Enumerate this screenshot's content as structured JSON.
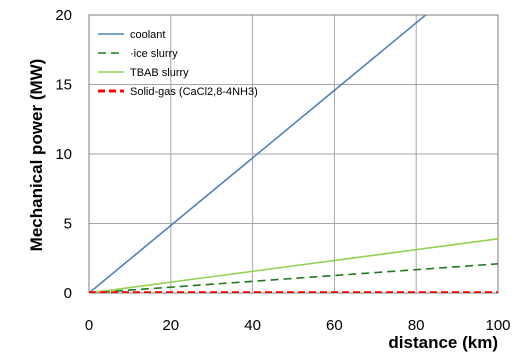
{
  "chart_data": {
    "type": "line",
    "xlabel": "distance (km)",
    "ylabel": "Mechanical power (MW)",
    "xlim": [
      0,
      100
    ],
    "ylim": [
      0,
      20
    ],
    "xticks": [
      0,
      20,
      40,
      60,
      80,
      100
    ],
    "yticks": [
      0,
      5,
      10,
      15,
      20
    ],
    "grid": true,
    "legend_position": "top-left",
    "series": [
      {
        "name": "coolant",
        "color": "#4f81bd",
        "style": "solid",
        "x": [
          0,
          100
        ],
        "y": [
          0,
          24.3
        ]
      },
      {
        "name": "·ice slurry",
        "color": "#1f7a1f",
        "style": "dashed",
        "x": [
          0,
          100
        ],
        "y": [
          0,
          2.1
        ]
      },
      {
        "name": "TBAB slurry",
        "color": "#92d050",
        "style": "solid",
        "x": [
          0,
          100
        ],
        "y": [
          0,
          3.9
        ]
      },
      {
        "name": "Solid-gas (CaCl2,8-4NH3)",
        "color": "#ff0000",
        "style": "dashed-thick",
        "x": [
          0,
          100
        ],
        "y": [
          0.02,
          0.02
        ]
      }
    ]
  }
}
